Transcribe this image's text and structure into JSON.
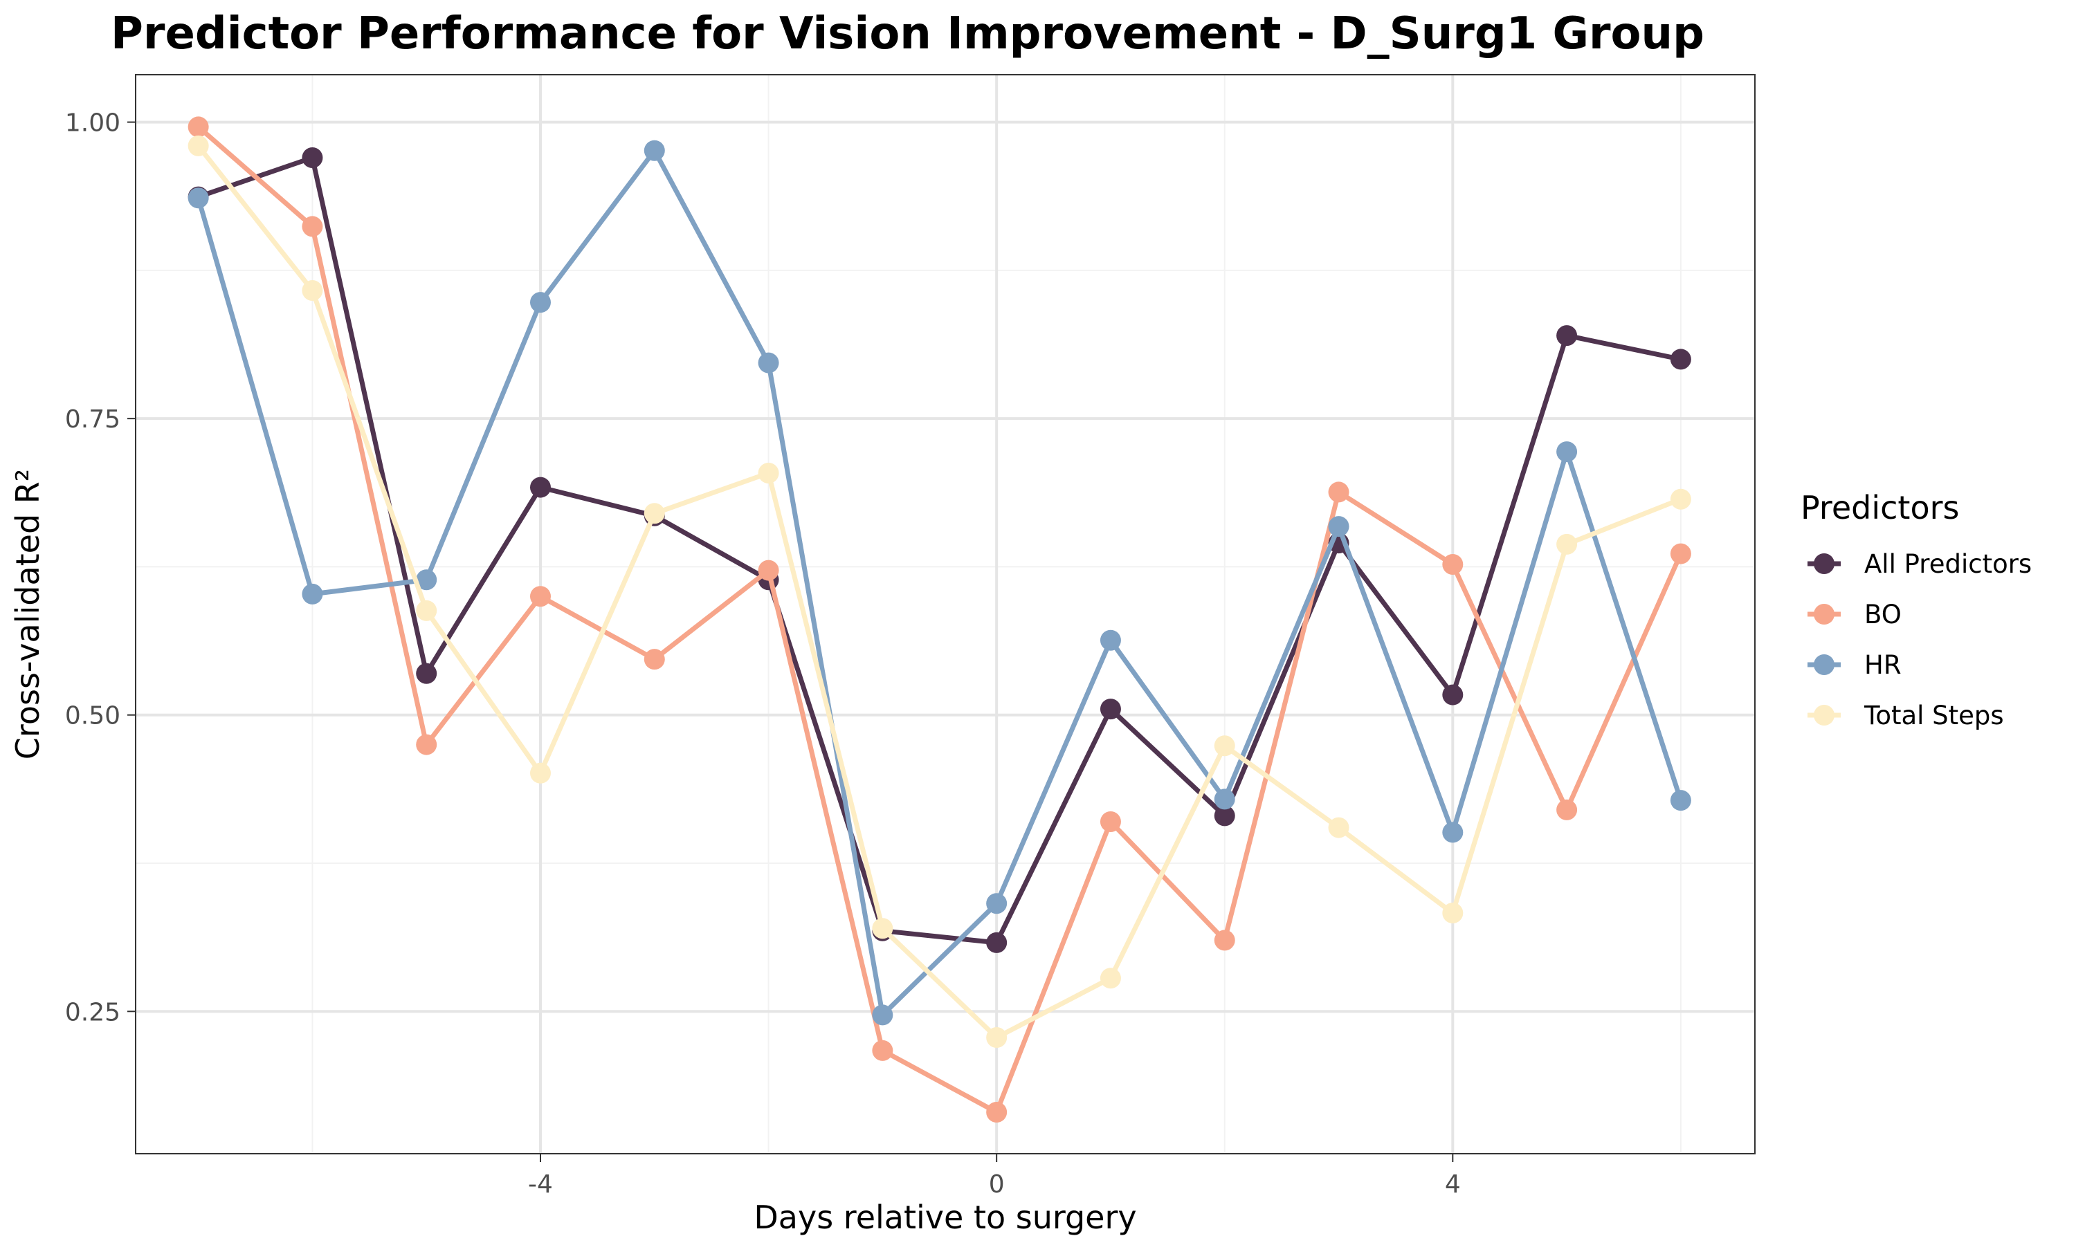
{
  "chart_data": {
    "type": "line",
    "title": "Predictor Performance for Vision Improvement - D_Surg1 Group",
    "xlabel": "Days relative to surgery",
    "ylabel": "Cross-validated R²",
    "x": [
      -7,
      -6,
      -5,
      -4,
      -3,
      -2,
      -1,
      0,
      1,
      2,
      3,
      4,
      5,
      6
    ],
    "xlim": [
      -7.55,
      6.65
    ],
    "ylim": [
      0.13,
      1.04
    ],
    "x_ticks": [
      -4,
      0,
      4
    ],
    "x_tick_labels": [
      "-4",
      "0",
      "4"
    ],
    "y_ticks": [
      0.25,
      0.5,
      0.75,
      1.0
    ],
    "y_tick_labels": [
      "0.25",
      "0.50",
      "0.75",
      "1.00"
    ],
    "grid": true,
    "legend_title": "Predictors",
    "legend_position": "right",
    "series": [
      {
        "name": "All Predictors",
        "color": "#4f344f",
        "values": [
          0.937,
          0.97,
          0.535,
          0.692,
          0.668,
          0.614,
          0.318,
          0.308,
          0.505,
          0.415,
          0.645,
          0.517,
          0.82,
          0.8
        ]
      },
      {
        "name": "BO",
        "color": "#f7a58a",
        "values": [
          0.996,
          0.912,
          0.475,
          0.6,
          0.547,
          0.622,
          0.217,
          0.165,
          0.41,
          0.31,
          0.688,
          0.627,
          0.42,
          0.636
        ]
      },
      {
        "name": "HR",
        "color": "#7fa1c3",
        "values": [
          0.936,
          0.602,
          0.614,
          0.848,
          0.976,
          0.797,
          0.247,
          0.341,
          0.563,
          0.429,
          0.659,
          0.401,
          0.722,
          0.428
        ]
      },
      {
        "name": "Total Steps",
        "color": "#fdedc4",
        "values": [
          0.98,
          0.858,
          0.588,
          0.451,
          0.67,
          0.704,
          0.32,
          0.228,
          0.278,
          0.474,
          0.405,
          0.333,
          0.644,
          0.682
        ]
      }
    ]
  }
}
